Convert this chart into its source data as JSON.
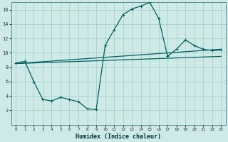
{
  "xlabel": "Humidex (Indice chaleur)",
  "background_color": "#ceeae7",
  "grid_color": "#a8ceca",
  "line_color": "#006060",
  "xlim": [
    -0.5,
    23.5
  ],
  "ylim": [
    0,
    17
  ],
  "xticks": [
    0,
    1,
    2,
    3,
    4,
    5,
    6,
    7,
    8,
    9,
    10,
    11,
    12,
    13,
    14,
    15,
    16,
    17,
    18,
    19,
    20,
    21,
    22,
    23
  ],
  "yticks": [
    2,
    4,
    6,
    8,
    10,
    12,
    14,
    16
  ],
  "curve_x": [
    0,
    1,
    2,
    3,
    4,
    5,
    6,
    7,
    8,
    9,
    10,
    11,
    12,
    13,
    14,
    15,
    16,
    17,
    18,
    19,
    20,
    21,
    22,
    23
  ],
  "curve_y": [
    8.6,
    8.8,
    6.0,
    3.5,
    3.3,
    3.8,
    3.5,
    3.2,
    2.2,
    2.1,
    11.0,
    13.2,
    15.3,
    16.1,
    16.5,
    17.0,
    14.8,
    9.5,
    10.5,
    11.8,
    11.0,
    10.5,
    10.3,
    10.4
  ],
  "line1_x": [
    0,
    23
  ],
  "line1_y": [
    8.5,
    10.5
  ],
  "line2_x": [
    0,
    23
  ],
  "line2_y": [
    8.5,
    9.5
  ]
}
